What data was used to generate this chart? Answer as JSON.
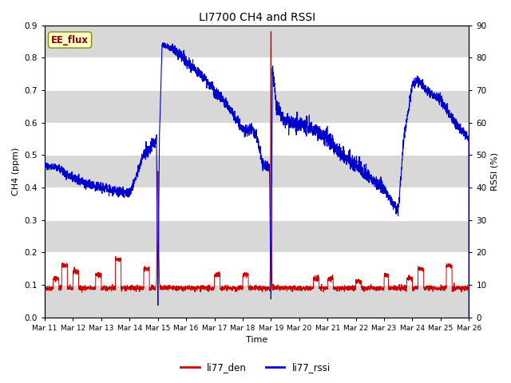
{
  "title": "LI7700 CH4 and RSSI",
  "xlabel": "Time",
  "ylabel_left": "CH4 (ppm)",
  "ylabel_right": "RSSI (%)",
  "annotation": "EE_flux",
  "legend_labels": [
    "li77_den",
    "li77_rssi"
  ],
  "legend_colors": [
    "#cc0000",
    "#0000cc"
  ],
  "ylim_left": [
    0.0,
    0.9
  ],
  "ylim_right": [
    0,
    90
  ],
  "yticks_left": [
    0.0,
    0.1,
    0.2,
    0.3,
    0.4,
    0.5,
    0.6,
    0.7,
    0.8,
    0.9
  ],
  "yticks_right": [
    0,
    10,
    20,
    30,
    40,
    50,
    60,
    70,
    80,
    90
  ],
  "xtick_labels": [
    "Mar 11",
    "Mar 12",
    "Mar 13",
    "Mar 14",
    "Mar 15",
    "Mar 16",
    "Mar 17",
    "Mar 18",
    "Mar 19",
    "Mar 20",
    "Mar 21",
    "Mar 22",
    "Mar 23",
    "Mar 24",
    "Mar 25",
    "Mar 26"
  ],
  "bg_color": "#ffffff",
  "plot_bg": "#e8e8e8",
  "line_color_den": "#cc0000",
  "line_color_rssi": "#0000cc",
  "stripe_color": "#d8d8d8"
}
